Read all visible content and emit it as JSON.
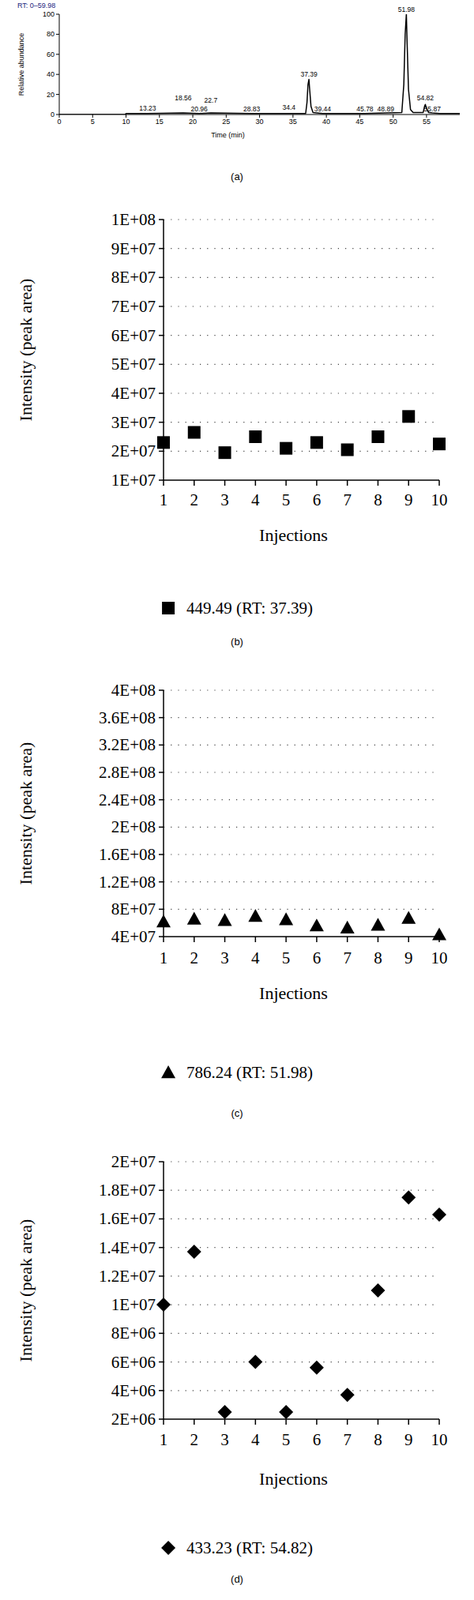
{
  "chart_data": [
    {
      "type": "line",
      "caption": "(a)",
      "range_label": "RT: 0–59.98",
      "xlabel": "Time (min)",
      "ylabel": "Relative abundance",
      "x": [
        0,
        9.9,
        10,
        13.23,
        18.56,
        20.96,
        22.7,
        28.83,
        34.4,
        36.9,
        37.1,
        37.25,
        37.39,
        37.5,
        37.7,
        38,
        39.44,
        45.78,
        48.89,
        51.3,
        51.6,
        51.8,
        51.98,
        52.1,
        52.3,
        52.6,
        53,
        54.5,
        54.7,
        54.82,
        55,
        55.3,
        55.87,
        57,
        59.98
      ],
      "values": [
        0,
        0,
        1,
        1,
        1.5,
        1,
        1.5,
        1,
        1,
        1,
        12,
        30,
        35,
        25,
        8,
        2,
        1,
        1,
        1.5,
        2,
        30,
        80,
        100,
        70,
        25,
        5,
        2,
        2,
        8,
        10,
        6,
        2,
        1.5,
        1,
        1
      ],
      "color": "#000000",
      "xlim": [
        0,
        59.98
      ],
      "xticks": [
        0,
        5,
        10,
        15,
        20,
        25,
        30,
        35,
        40,
        45,
        50,
        55
      ],
      "ylim": [
        0,
        100
      ],
      "yticks": [
        0,
        20,
        40,
        60,
        80,
        100
      ],
      "annotations": [
        {
          "text": "13.23",
          "x": 13.23,
          "y": 4
        },
        {
          "text": "18.56",
          "x": 18.56,
          "y": 14
        },
        {
          "text": "20.96",
          "x": 20.96,
          "y": 3
        },
        {
          "text": "22.7",
          "x": 22.7,
          "y": 12
        },
        {
          "text": "28.83",
          "x": 28.83,
          "y": 3
        },
        {
          "text": "34.4",
          "x": 34.4,
          "y": 5
        },
        {
          "text": "37.39",
          "x": 37.39,
          "y": 38
        },
        {
          "text": "39.44",
          "x": 39.44,
          "y": 3
        },
        {
          "text": "45.78",
          "x": 45.78,
          "y": 3
        },
        {
          "text": "48.89",
          "x": 48.89,
          "y": 3
        },
        {
          "text": "51.98",
          "x": 51.98,
          "y": 102
        },
        {
          "text": "54.82",
          "x": 54.82,
          "y": 14
        },
        {
          "text": "55.87",
          "x": 55.87,
          "y": 3
        }
      ]
    },
    {
      "type": "scatter",
      "caption": "(b)",
      "xlabel": "Injections",
      "ylabel": "Intensity (peak area)",
      "x": [
        1,
        2,
        3,
        4,
        5,
        6,
        7,
        8,
        9,
        10
      ],
      "series": [
        {
          "name": "449.49 (RT: 37.39)",
          "color": "#000000",
          "marker": "square",
          "values": [
            23000000,
            26500000,
            19500000,
            25000000,
            21000000,
            23000000,
            20500000,
            25000000,
            32000000,
            22500000
          ]
        }
      ],
      "xlim": [
        1,
        10
      ],
      "xticks": [
        1,
        2,
        3,
        4,
        5,
        6,
        7,
        8,
        9,
        10
      ],
      "ylim": [
        10000000,
        100000000
      ],
      "yticks": [
        {
          "value": 10000000,
          "label": "1E+07"
        },
        {
          "value": 20000000,
          "label": "2E+07"
        },
        {
          "value": 30000000,
          "label": "3E+07"
        },
        {
          "value": 40000000,
          "label": "4E+07"
        },
        {
          "value": 50000000,
          "label": "5E+07"
        },
        {
          "value": 60000000,
          "label": "6E+07"
        },
        {
          "value": 70000000,
          "label": "7E+07"
        },
        {
          "value": 80000000,
          "label": "8E+07"
        },
        {
          "value": 90000000,
          "label": "9E+07"
        },
        {
          "value": 100000000,
          "label": "1E+08"
        }
      ],
      "grid": true,
      "legend": "bottom"
    },
    {
      "type": "scatter",
      "caption": "(c)",
      "xlabel": "Injections",
      "ylabel": "Intensity (peak area)",
      "x": [
        1,
        2,
        3,
        4,
        5,
        6,
        7,
        8,
        9,
        10
      ],
      "series": [
        {
          "name": "786.24 (RT: 51.98)",
          "color": "#000000",
          "marker": "triangle",
          "values": [
            62000000,
            66000000,
            64000000,
            70000000,
            65000000,
            56000000,
            53000000,
            57000000,
            67000000,
            43000000
          ]
        }
      ],
      "xlim": [
        1,
        10
      ],
      "xticks": [
        1,
        2,
        3,
        4,
        5,
        6,
        7,
        8,
        9,
        10
      ],
      "ylim": [
        40000000,
        400000000
      ],
      "yticks": [
        {
          "value": 40000000,
          "label": "4E+07"
        },
        {
          "value": 80000000,
          "label": "8E+07"
        },
        {
          "value": 120000000,
          "label": "1.2E+08"
        },
        {
          "value": 160000000,
          "label": "1.6E+08"
        },
        {
          "value": 200000000,
          "label": "2E+08"
        },
        {
          "value": 240000000,
          "label": "2.4E+08"
        },
        {
          "value": 280000000,
          "label": "2.8E+08"
        },
        {
          "value": 320000000,
          "label": "3.2E+08"
        },
        {
          "value": 360000000,
          "label": "3.6E+08"
        },
        {
          "value": 400000000,
          "label": "4E+08"
        }
      ],
      "grid": true,
      "legend": "bottom"
    },
    {
      "type": "scatter",
      "caption": "(d)",
      "xlabel": "Injections",
      "ylabel": "Intensity (peak area)",
      "x": [
        1,
        2,
        3,
        4,
        5,
        6,
        7,
        8,
        9,
        10
      ],
      "series": [
        {
          "name": "433.23 (RT: 54.82)",
          "color": "#000000",
          "marker": "diamond",
          "values": [
            10000000,
            13700000,
            2500000,
            6000000,
            2500000,
            5600000,
            3700000,
            11000000,
            17500000,
            16300000
          ]
        }
      ],
      "xlim": [
        1,
        10
      ],
      "xticks": [
        1,
        2,
        3,
        4,
        5,
        6,
        7,
        8,
        9,
        10
      ],
      "ylim": [
        2000000,
        20000000
      ],
      "yticks": [
        {
          "value": 2000000,
          "label": "2E+06"
        },
        {
          "value": 4000000,
          "label": "4E+06"
        },
        {
          "value": 6000000,
          "label": "6E+06"
        },
        {
          "value": 8000000,
          "label": "8E+06"
        },
        {
          "value": 10000000,
          "label": "1E+07"
        },
        {
          "value": 12000000,
          "label": "1.2E+07"
        },
        {
          "value": 14000000,
          "label": "1.4E+07"
        },
        {
          "value": 16000000,
          "label": "1.6E+07"
        },
        {
          "value": 18000000,
          "label": "1.8E+07"
        },
        {
          "value": 20000000,
          "label": "2E+07"
        }
      ],
      "grid": true,
      "legend": "bottom"
    }
  ]
}
